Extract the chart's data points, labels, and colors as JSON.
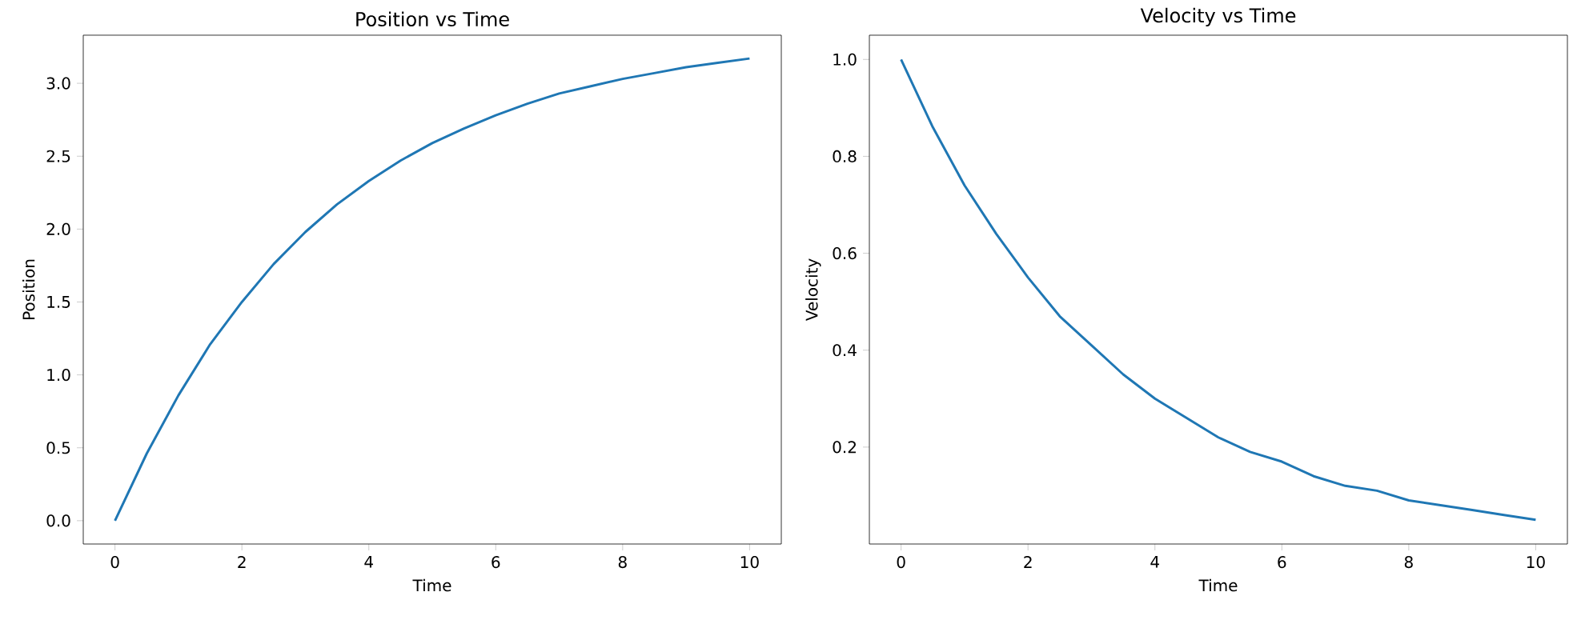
{
  "chart_data": [
    {
      "type": "line",
      "title": "Position vs Time",
      "xlabel": "Time",
      "ylabel": "Position",
      "color": "#1f77b4",
      "x": [
        0,
        0.5,
        1,
        1.5,
        2,
        2.5,
        3,
        3.5,
        4,
        4.5,
        5,
        5.5,
        6,
        6.5,
        7,
        7.5,
        8,
        8.5,
        9,
        9.5,
        10
      ],
      "values": [
        0,
        0.46,
        0.86,
        1.21,
        1.5,
        1.76,
        1.98,
        2.17,
        2.33,
        2.47,
        2.59,
        2.69,
        2.78,
        2.86,
        2.93,
        2.98,
        3.03,
        3.07,
        3.11,
        3.14,
        3.17
      ],
      "xlim": [
        -0.5,
        10.5
      ],
      "ylim": [
        -0.16,
        3.33
      ],
      "xticks": [
        0,
        2,
        4,
        6,
        8,
        10
      ],
      "yticks": [
        {
          "value": 0,
          "label": "0.0"
        },
        {
          "value": 0.5,
          "label": "0.5"
        },
        {
          "value": 1,
          "label": "1.0"
        },
        {
          "value": 1.5,
          "label": "1.5"
        },
        {
          "value": 2,
          "label": "2.0"
        },
        {
          "value": 2.5,
          "label": "2.5"
        },
        {
          "value": 3,
          "label": "3.0"
        }
      ]
    },
    {
      "type": "line",
      "title": "Velocity vs Time",
      "xlabel": "Time",
      "ylabel": "Velocity",
      "color": "#1f77b4",
      "x": [
        0,
        0.5,
        1,
        1.5,
        2,
        2.5,
        3,
        3.5,
        4,
        4.5,
        5,
        5.5,
        6,
        6.5,
        7,
        7.5,
        8,
        8.5,
        9,
        9.5,
        10
      ],
      "values": [
        1,
        0.86,
        0.74,
        0.64,
        0.55,
        0.47,
        0.41,
        0.35,
        0.3,
        0.26,
        0.22,
        0.19,
        0.17,
        0.14,
        0.12,
        0.11,
        0.09,
        0.08,
        0.07,
        0.06,
        0.05
      ],
      "xlim": [
        -0.5,
        10.5
      ],
      "ylim": [
        0.0,
        1.05
      ],
      "xticks": [
        0,
        2,
        4,
        6,
        8,
        10
      ],
      "yticks": [
        {
          "value": 0.2,
          "label": "0.2"
        },
        {
          "value": 0.4,
          "label": "0.4"
        },
        {
          "value": 0.6,
          "label": "0.6"
        },
        {
          "value": 0.8,
          "label": "0.8"
        },
        {
          "value": 1,
          "label": "1.0"
        }
      ]
    }
  ]
}
